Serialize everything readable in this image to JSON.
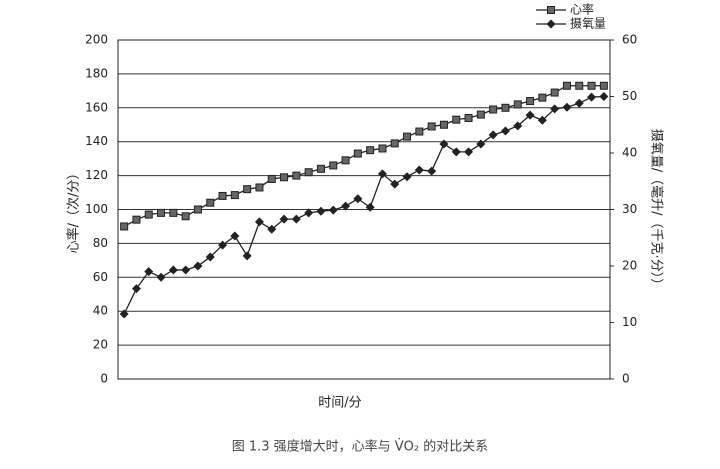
{
  "chart_data": {
    "type": "line",
    "caption": "图 1.3   强度增大时，心率与 V̇O₂ 的对比关系",
    "xlabel": "时间/分",
    "ylabel": "心率/（次/分）",
    "y2label": "摄氧量/（毫升/（千克·分））",
    "categories": [
      null,
      null,
      null,
      null,
      null,
      null,
      null,
      null,
      null,
      null,
      null,
      null,
      null,
      null,
      null,
      null,
      null,
      null,
      null,
      null,
      null,
      null,
      null,
      null,
      null,
      null,
      null,
      null,
      null,
      null,
      null,
      null,
      null,
      null,
      null,
      null,
      null,
      null,
      null,
      null
    ],
    "ylim": [
      0,
      200
    ],
    "yticks": [
      0,
      20,
      40,
      60,
      80,
      100,
      120,
      140,
      160,
      180,
      200
    ],
    "y2lim": [
      0,
      60
    ],
    "y2ticks": [
      0,
      10,
      20,
      30,
      40,
      50,
      60
    ],
    "grid": true,
    "legend": "upper right",
    "series": [
      {
        "name": "心率",
        "color": "#222222",
        "marker": "square",
        "values": [
          90,
          94,
          97,
          98,
          98,
          96,
          100,
          104,
          108,
          108.5,
          112,
          113,
          118,
          119,
          120,
          122,
          124,
          126,
          129,
          133,
          135,
          136,
          139,
          143,
          146,
          149,
          150,
          153,
          154,
          156,
          159,
          160,
          162,
          164,
          166,
          169,
          173,
          173,
          173,
          173
        ]
      },
      {
        "name": "摄氧量",
        "color": "#222222",
        "marker": "diamond",
        "axis": "y2",
        "values": [
          11.5,
          16,
          19,
          18,
          19.3,
          19.3,
          20,
          21.6,
          23.7,
          25.3,
          21.8,
          27.8,
          26.5,
          28.3,
          28.3,
          29.4,
          29.7,
          29.9,
          30.6,
          31.9,
          30.4,
          36.3,
          34.5,
          35.8,
          37,
          36.8,
          41.6,
          40.2,
          40.2,
          41.6,
          43.2,
          43.9,
          44.8,
          46.7,
          45.8,
          47.8,
          48.1,
          48.8,
          49.9,
          50
        ]
      }
    ]
  }
}
